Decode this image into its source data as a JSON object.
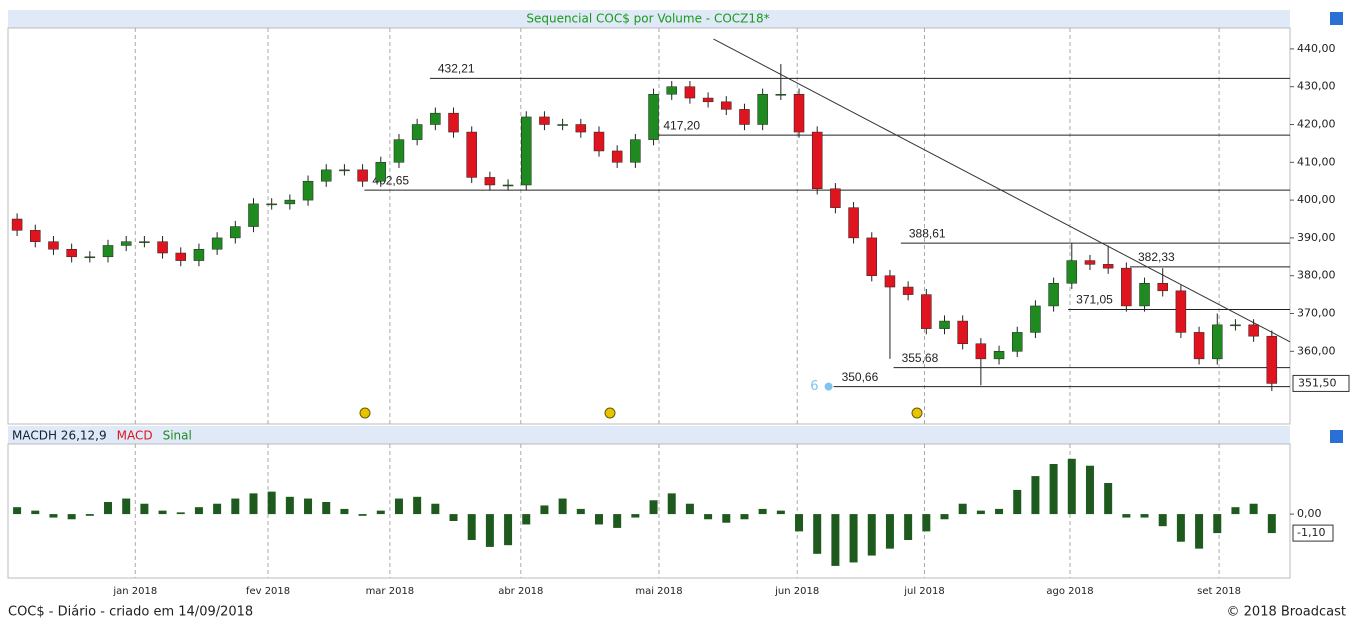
{
  "chart_data": [
    {
      "type": "candlestick",
      "title": "Sequencial COC$ por Volume - COCZ18*",
      "up_color": "#1f8a1f",
      "down_color": "#e0141e",
      "open": [
        395,
        392,
        389,
        387,
        385,
        385,
        388,
        389,
        389,
        386,
        384,
        387,
        390,
        393,
        399,
        399,
        400,
        405,
        408,
        408,
        405,
        410,
        416,
        420,
        423,
        418,
        406,
        404,
        404,
        422,
        420,
        420,
        418,
        413,
        410,
        416,
        428,
        430,
        427,
        426,
        424,
        420,
        428,
        428,
        418,
        403,
        398,
        390,
        380,
        377,
        375,
        366,
        368,
        362,
        358,
        360,
        365,
        372,
        378,
        384,
        383,
        382,
        372,
        378,
        376,
        365,
        358,
        367,
        367,
        364
      ],
      "high": [
        396.5,
        393.5,
        390.5,
        388.5,
        386.5,
        389.5,
        390.5,
        390.5,
        390.5,
        387.5,
        388.5,
        391.5,
        394.5,
        400.5,
        400.5,
        401.5,
        406.5,
        409.5,
        409.5,
        409.5,
        411.5,
        417.5,
        421.5,
        424.5,
        424.5,
        419.5,
        407.5,
        405.5,
        423.5,
        423.5,
        421.5,
        421.5,
        419.5,
        414.5,
        417.5,
        429.5,
        431.5,
        431.5,
        428.5,
        427.5,
        425.5,
        429.5,
        436,
        429.5,
        419.5,
        404.5,
        399.5,
        391.5,
        381.5,
        378.5,
        376.5,
        369.5,
        369.5,
        363.5,
        361.5,
        366.5,
        373.5,
        379.5,
        388.5,
        385.5,
        388,
        383.5,
        379.5,
        382,
        377.5,
        366.5,
        370,
        368.5,
        368.5,
        365.5
      ],
      "low": [
        390.5,
        387.5,
        385.5,
        383.5,
        383.5,
        383.5,
        386.5,
        387.5,
        384.5,
        382.5,
        382.5,
        385.5,
        388.5,
        391.5,
        397.5,
        397.5,
        398.5,
        403.5,
        406.5,
        403.5,
        403.5,
        408.5,
        414.5,
        418.5,
        416.5,
        404.5,
        402.5,
        402.5,
        402.5,
        418.5,
        418.5,
        416.5,
        411.5,
        408.5,
        408.5,
        414.5,
        426.5,
        425.5,
        424.5,
        422.5,
        418.5,
        418.5,
        426.5,
        416.5,
        401.5,
        396.5,
        388.5,
        378.5,
        358,
        373.5,
        364.5,
        364.5,
        360.5,
        351,
        356.5,
        358.5,
        363.5,
        370.5,
        376.5,
        381.5,
        380.5,
        370.5,
        370.5,
        374.5,
        363.5,
        356.5,
        356.5,
        365.5,
        362.5,
        349.5
      ],
      "close": [
        392,
        389,
        387,
        385,
        385,
        388,
        389,
        389,
        386,
        384,
        387,
        390,
        393,
        399,
        399,
        400,
        405,
        408,
        408,
        405,
        410,
        416,
        420,
        423,
        418,
        406,
        404,
        404,
        422,
        420,
        420,
        418,
        413,
        410,
        416,
        428,
        430,
        427,
        426,
        424,
        420,
        428,
        428,
        418,
        403,
        398,
        390,
        380,
        377,
        375,
        366,
        368,
        362,
        358,
        360,
        365,
        372,
        378,
        384,
        383,
        382,
        372,
        378,
        376,
        365,
        358,
        367,
        367,
        364,
        351.5
      ],
      "xlim": [
        -0.5,
        70
      ],
      "xticks": [
        {
          "value": 6.5,
          "label": "jan 2018"
        },
        {
          "value": 13.8,
          "label": "fev 2018"
        },
        {
          "value": 20.5,
          "label": "mar 2018"
        },
        {
          "value": 27.7,
          "label": "abr 2018"
        },
        {
          "value": 35.3,
          "label": "mai 2018"
        },
        {
          "value": 42.9,
          "label": "jun 2018"
        },
        {
          "value": 49.9,
          "label": "jul 2018"
        },
        {
          "value": 57.9,
          "label": "ago 2018"
        },
        {
          "value": 66.1,
          "label": "set 2018"
        }
      ],
      "ylim": [
        345,
        445
      ],
      "yticks": [
        {
          "value": 360,
          "label": "360,00"
        },
        {
          "value": 370,
          "label": "370,00"
        },
        {
          "value": 380,
          "label": "380,00"
        },
        {
          "value": 390,
          "label": "390,00"
        },
        {
          "value": 400,
          "label": "400,00"
        },
        {
          "value": 410,
          "label": "410,00"
        },
        {
          "value": 420,
          "label": "420,00"
        },
        {
          "value": 430,
          "label": "430,00"
        },
        {
          "value": 440,
          "label": "440,00"
        }
      ],
      "grid": "x",
      "levels": [
        {
          "value": 432.21,
          "label": "432,21",
          "start": 22.7
        },
        {
          "value": 417.2,
          "label": "417,20",
          "start": 35.1
        },
        {
          "value": 402.65,
          "label": "402,65",
          "start": 19.1
        },
        {
          "value": 388.61,
          "label": "388,61",
          "start": 48.6
        },
        {
          "value": 382.33,
          "label": "382,33",
          "start": 61.2
        },
        {
          "value": 371.05,
          "label": "371,05",
          "start": 57.8
        },
        {
          "value": 355.68,
          "label": "355,68",
          "start": 48.2
        },
        {
          "value": 350.66,
          "label": "350,66",
          "start": 44.9
        }
      ],
      "marker_label": "6",
      "trendline": {
        "x": [
          38.3,
          70
        ],
        "y": [
          442.6,
          362.5
        ]
      },
      "last_price": {
        "value": 351.5,
        "label": "351,50"
      }
    },
    {
      "type": "histogram",
      "series": [
        {
          "name": "MACDH 26,12,9",
          "color": "#1e5a1e",
          "values": [
            0.4,
            0.2,
            -0.2,
            -0.3,
            -0.1,
            0.7,
            0.9,
            0.6,
            0.2,
            0.1,
            0.4,
            0.6,
            0.9,
            1.2,
            1.3,
            1.0,
            0.9,
            0.7,
            0.3,
            -0.1,
            0.2,
            0.9,
            1.0,
            0.6,
            -0.4,
            -1.5,
            -1.9,
            -1.8,
            -0.6,
            0.5,
            0.9,
            0.3,
            -0.6,
            -0.8,
            -0.2,
            0.8,
            1.2,
            0.6,
            -0.3,
            -0.5,
            -0.3,
            0.3,
            0.2,
            -1.0,
            -2.3,
            -3.0,
            -2.8,
            -2.4,
            -2.0,
            -1.5,
            -1.0,
            -0.3,
            0.6,
            0.2,
            0.3,
            1.4,
            2.2,
            2.9,
            3.2,
            2.8,
            1.8,
            -0.2,
            -0.2,
            -0.7,
            -1.6,
            -2.0,
            -1.1,
            0.4,
            0.6,
            -1.1
          ]
        }
      ],
      "legend_extra": [
        {
          "name": "MACD",
          "color": "#e0141e"
        },
        {
          "name": "Sinal",
          "color": "#1f8a1f"
        }
      ],
      "ylim": [
        -3.7,
        4.0
      ],
      "yticks": [
        {
          "value": 0,
          "label": "0,00"
        }
      ],
      "last_value": {
        "value": -1.1,
        "label": "-1,10"
      }
    }
  ],
  "footer": {
    "left": "COC$ - Diário - criado em 14/09/2018",
    "right": "© 2018 Broadcast"
  }
}
